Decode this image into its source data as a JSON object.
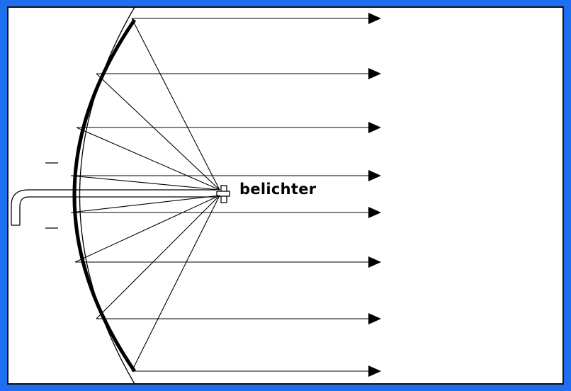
{
  "diagram": {
    "label": "belichter",
    "ray_count": 8,
    "colors": {
      "frame": "#1e6ff0",
      "ink": "#000000",
      "paper": "#ffffff"
    }
  }
}
